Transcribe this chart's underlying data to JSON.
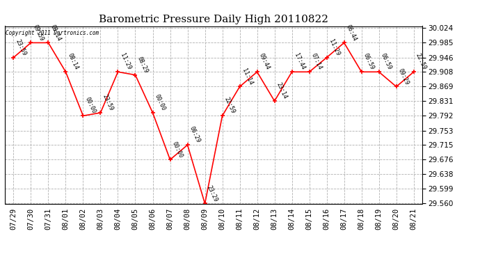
{
  "title": "Barometric Pressure Daily High 20110822",
  "copyright": "Copyright 2011 Dartronics.com",
  "x_labels": [
    "07/29",
    "07/30",
    "07/31",
    "08/01",
    "08/02",
    "08/03",
    "08/04",
    "08/05",
    "08/06",
    "08/07",
    "08/08",
    "08/09",
    "08/10",
    "08/11",
    "08/12",
    "08/13",
    "08/14",
    "08/15",
    "08/16",
    "08/17",
    "08/18",
    "08/19",
    "08/20",
    "08/21"
  ],
  "y_values": [
    29.946,
    29.985,
    29.985,
    29.908,
    29.792,
    29.8,
    29.908,
    29.9,
    29.8,
    29.676,
    29.715,
    29.56,
    29.792,
    29.869,
    29.908,
    29.831,
    29.908,
    29.908,
    29.946,
    29.985,
    29.908,
    29.908,
    29.869,
    29.908
  ],
  "time_labels": [
    "23:59",
    "09:59",
    "08:14",
    "08:14",
    "00:00",
    "23:59",
    "11:29",
    "08:29",
    "00:00",
    "00:00",
    "06:29",
    "23:29",
    "22:59",
    "11:14",
    "09:44",
    "23:14",
    "17:44",
    "07:14",
    "11:29",
    "06:44",
    "06:59",
    "06:59",
    "09:29",
    "22:59"
  ],
  "ylim_min": 29.56,
  "ylim_max": 30.024,
  "yticks": [
    30.024,
    29.985,
    29.946,
    29.908,
    29.869,
    29.831,
    29.792,
    29.753,
    29.715,
    29.676,
    29.638,
    29.599,
    29.56
  ],
  "line_color": "red",
  "marker_color": "red",
  "grid_color": "#b0b0b0",
  "bg_color": "white",
  "title_fontsize": 11,
  "tick_fontsize": 7.5,
  "annotation_fontsize": 6.0
}
